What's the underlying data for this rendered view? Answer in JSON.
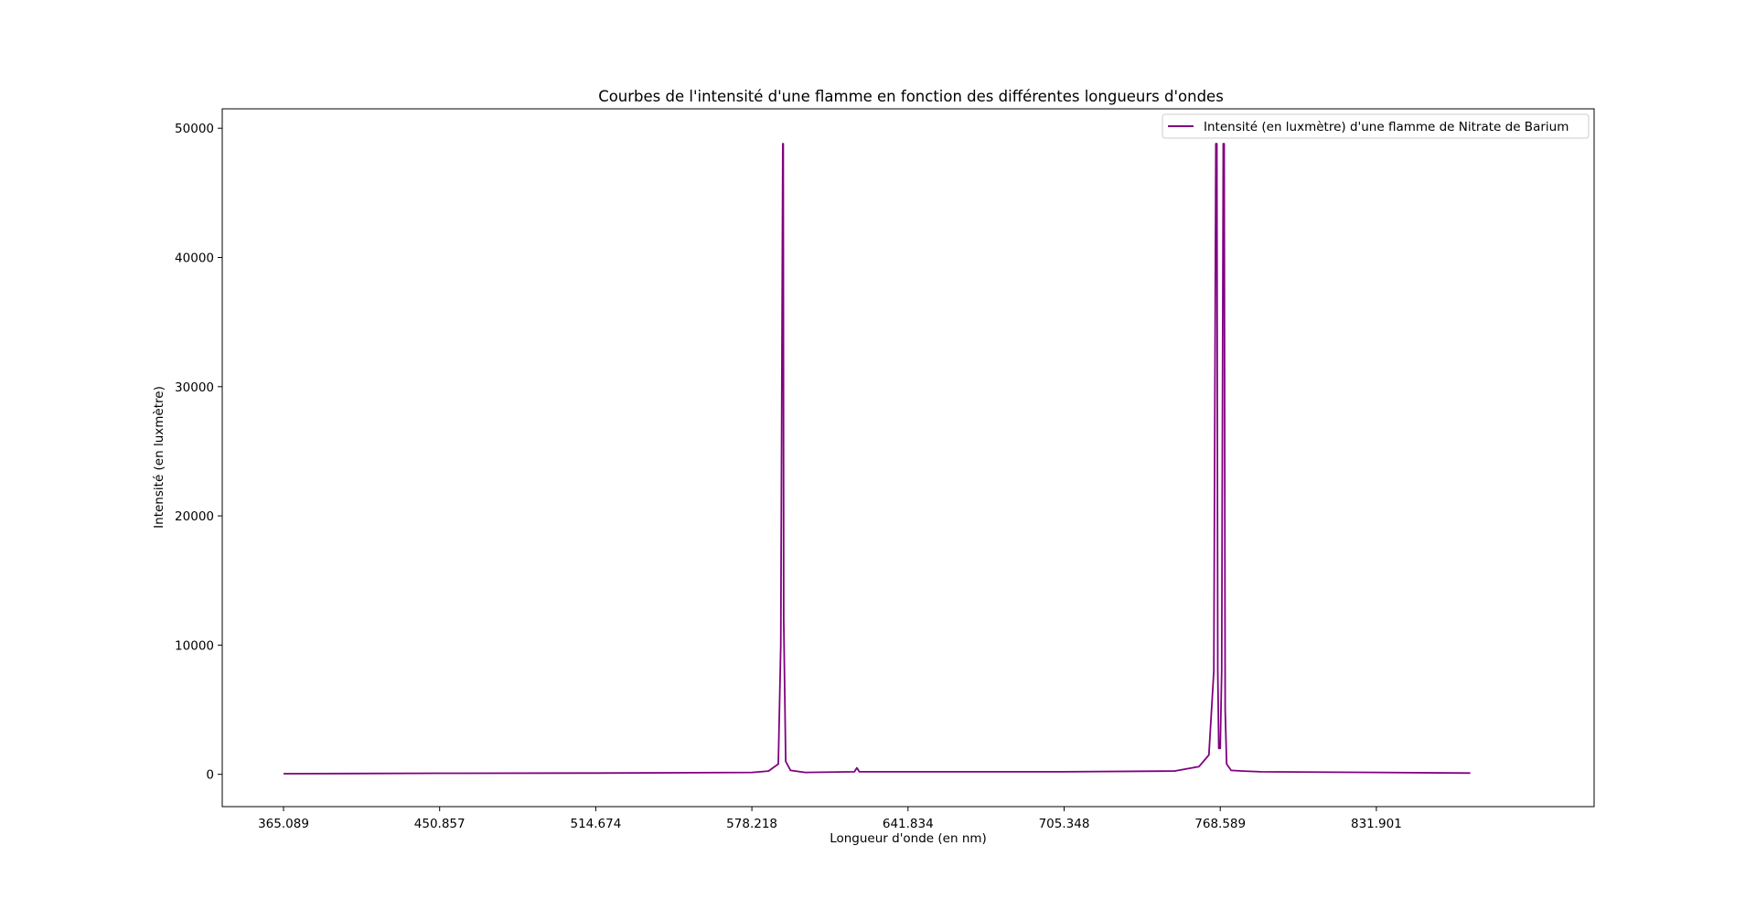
{
  "chart_data": {
    "type": "line",
    "title": "Courbes de l'intensité d'une flamme en fonction des différentes longueurs d'ondes",
    "xlabel": "Longueur d'onde (en nm)",
    "ylabel": "Intensité (en luxmètre)",
    "x_tick_labels": [
      "365.089",
      "450.857",
      "514.674",
      "578.218",
      "641.834",
      "705.348",
      "768.589",
      "831.901"
    ],
    "y_ticks": [
      0,
      10000,
      20000,
      30000,
      40000,
      50000
    ],
    "y_tick_labels": [
      "0",
      "10000",
      "20000",
      "30000",
      "40000",
      "50000"
    ],
    "ylim": [
      -2500,
      51500
    ],
    "grid": false,
    "legend_position": "top-right",
    "series": [
      {
        "name": "Intensité (en luxmètre) d'une flamme de Nitrate de Barium",
        "color": "#800080",
        "x": [
          "365.089",
          "450.857",
          "514.674",
          "578.218",
          "585",
          "589",
          "590",
          "590.8",
          "591",
          "591.2",
          "592",
          "594",
          "600",
          "620",
          "621",
          "622",
          "641.834",
          "705.348",
          "750",
          "760",
          "764",
          "766",
          "766.8",
          "767.2",
          "767.6",
          "768",
          "768.589",
          "769.2",
          "769.8",
          "770.2",
          "770.6",
          "771.2",
          "773",
          "778",
          "785",
          "831.901",
          "870"
        ],
        "y": [
          50,
          80,
          100,
          150,
          250,
          800,
          10000,
          48800,
          48800,
          12000,
          1000,
          300,
          150,
          200,
          500,
          200,
          200,
          200,
          250,
          600,
          1500,
          8000,
          48800,
          48800,
          8000,
          2000,
          2000,
          8000,
          48800,
          48800,
          5000,
          800,
          300,
          250,
          200,
          150,
          100
        ]
      }
    ]
  }
}
